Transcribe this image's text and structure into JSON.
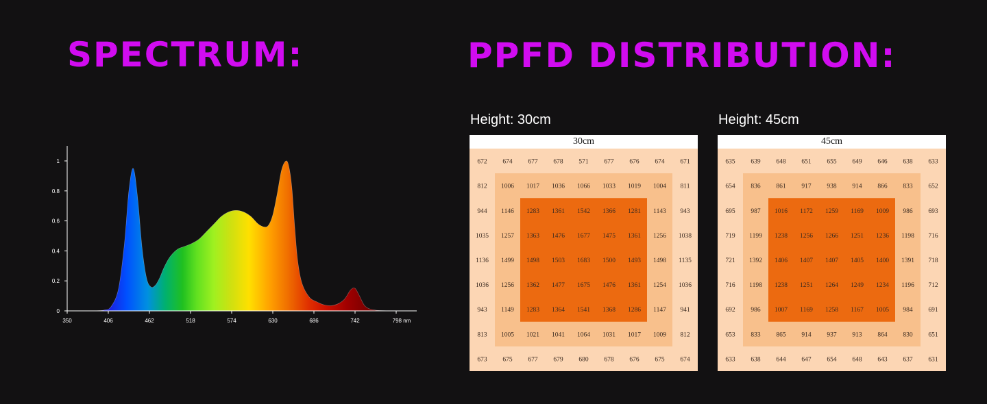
{
  "spectrum_heading": "SPECTRUM:",
  "ppfd_heading": "PPFD DISTRIBUTION:",
  "colors": {
    "heading": "#d10cf0",
    "background": "#121112",
    "zone_outer": "#fcd6b4",
    "zone_middle": "#f8c08c",
    "zone_inner": "#ec6a10"
  },
  "chart_data": [
    {
      "type": "area",
      "title": "SPECTRUM:",
      "xlabel": "nm",
      "ylabel": "",
      "xlim": [
        350,
        798
      ],
      "ylim": [
        0,
        1
      ],
      "x_ticks": [
        "350",
        "406",
        "462",
        "518",
        "574",
        "630",
        "686",
        "742",
        "798 nm"
      ],
      "y_ticks": [
        "0",
        "0.2",
        "0.4",
        "0.6",
        "0.8",
        "1"
      ],
      "x": [
        350,
        380,
        400,
        410,
        420,
        428,
        434,
        440,
        446,
        452,
        458,
        464,
        470,
        476,
        482,
        490,
        500,
        510,
        520,
        530,
        540,
        550,
        560,
        570,
        580,
        590,
        600,
        610,
        618,
        624,
        630,
        636,
        642,
        648,
        652,
        656,
        660,
        664,
        670,
        680,
        690,
        700,
        710,
        720,
        728,
        736,
        742,
        748,
        756,
        770,
        798
      ],
      "values": [
        0,
        0,
        0.005,
        0.03,
        0.15,
        0.45,
        0.8,
        0.95,
        0.75,
        0.42,
        0.22,
        0.16,
        0.17,
        0.22,
        0.29,
        0.36,
        0.41,
        0.43,
        0.45,
        0.48,
        0.53,
        0.58,
        0.63,
        0.66,
        0.67,
        0.66,
        0.63,
        0.58,
        0.56,
        0.57,
        0.64,
        0.78,
        0.94,
        1.0,
        0.96,
        0.82,
        0.55,
        0.33,
        0.18,
        0.09,
        0.06,
        0.04,
        0.035,
        0.05,
        0.08,
        0.14,
        0.15,
        0.1,
        0.03,
        0.005,
        0
      ]
    },
    {
      "type": "heatmap",
      "label": "Height: 30cm",
      "title": "30cm",
      "grid": [
        [
          672,
          674,
          677,
          678,
          571,
          677,
          676,
          674,
          671
        ],
        [
          812,
          1006,
          1017,
          1036,
          1066,
          1033,
          1019,
          1004,
          811
        ],
        [
          944,
          1146,
          1283,
          1361,
          1542,
          1366,
          1281,
          1143,
          943
        ],
        [
          1035,
          1257,
          1363,
          1476,
          1677,
          1475,
          1361,
          1256,
          1038
        ],
        [
          1136,
          1499,
          1498,
          1503,
          1683,
          1500,
          1493,
          1498,
          1135
        ],
        [
          1036,
          1256,
          1362,
          1477,
          1675,
          1476,
          1361,
          1254,
          1036
        ],
        [
          943,
          1149,
          1283,
          1364,
          1541,
          1368,
          1286,
          1147,
          941
        ],
        [
          813,
          1005,
          1021,
          1041,
          1064,
          1031,
          1017,
          1009,
          812
        ],
        [
          673,
          675,
          677,
          679,
          680,
          678,
          676,
          675,
          674
        ]
      ]
    },
    {
      "type": "heatmap",
      "label": "Height: 45cm",
      "title": "45cm",
      "grid": [
        [
          635,
          639,
          648,
          651,
          655,
          649,
          646,
          638,
          633
        ],
        [
          654,
          836,
          861,
          917,
          938,
          914,
          866,
          833,
          652
        ],
        [
          695,
          987,
          1016,
          1172,
          1259,
          1169,
          1009,
          986,
          693
        ],
        [
          719,
          1199,
          1238,
          1256,
          1266,
          1251,
          1236,
          1198,
          716
        ],
        [
          721,
          1392,
          1406,
          1407,
          1407,
          1405,
          1400,
          1391,
          718
        ],
        [
          716,
          1198,
          1238,
          1251,
          1264,
          1249,
          1234,
          1196,
          712
        ],
        [
          692,
          986,
          1007,
          1169,
          1258,
          1167,
          1005,
          984,
          691
        ],
        [
          653,
          833,
          865,
          914,
          937,
          913,
          864,
          830,
          651
        ],
        [
          633,
          638,
          644,
          647,
          654,
          648,
          643,
          637,
          631
        ]
      ]
    }
  ]
}
